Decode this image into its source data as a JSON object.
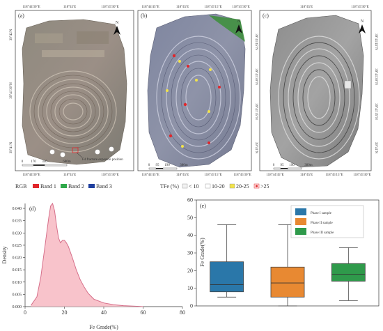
{
  "maps": {
    "a": {
      "label": "(a)",
      "top_ticks": [
        "118°44'30\"E",
        "118°45'E",
        "118°45'30\"E"
      ],
      "bottom_ticks": [
        "118°44'30\"E",
        "118°45'E",
        "118°45'30\"E"
      ],
      "left_ticks": [
        "39°42'N",
        "39°41'30\"N",
        "39°41'N"
      ],
      "scale_labels": [
        "0",
        "170",
        "340",
        "680m"
      ],
      "north": "N",
      "annotation": "F4 fracture exposure position"
    },
    "b": {
      "label": "(b)",
      "top_ticks": [
        "118°44'45\"E",
        "118°45'E",
        "118°45'15\"E",
        "118°45'30\"E"
      ],
      "bottom_ticks": [
        "118°44'45\"E",
        "118°45'E",
        "118°45'15\"E",
        "118°45'30\"E"
      ],
      "right_ticks": [
        "39°41'45\"N",
        "39°41'30\"N",
        "39°41'15\"N",
        "39°41'N"
      ],
      "scale_labels": [
        "0",
        "95",
        "190",
        "380m"
      ],
      "north": "N"
    },
    "c": {
      "label": "(c)",
      "top_ticks": [
        "118°45'E",
        "118°45'30\"E"
      ],
      "bottom_ticks": [
        "118°44'45\"E",
        "118°45'E",
        "118°45'15\"E",
        "118°45'30\"E"
      ],
      "right_ticks": [
        "39°41'45\"N",
        "39°41'30\"N",
        "39°41'15\"N",
        "39°41'N"
      ],
      "scale_labels": [
        "0",
        "95",
        "190",
        "380m"
      ],
      "north": "N"
    }
  },
  "legend_rgb": {
    "title": "RGB",
    "items": [
      {
        "label": "Band 1",
        "color": "#e0262b"
      },
      {
        "label": "Band 2",
        "color": "#2fa84a"
      },
      {
        "label": "Band 3",
        "color": "#1f3f9e"
      }
    ]
  },
  "legend_tfe": {
    "title": "TFe (%)",
    "items": [
      "< 10",
      "10-20",
      "20-25",
      ">25"
    ]
  },
  "chart_data": [
    {
      "type": "area",
      "label": "(d)",
      "xlabel": "Fe Grade(%)",
      "ylabel": "Density",
      "xlim": [
        0,
        80
      ],
      "ylim": [
        0,
        0.042
      ],
      "xticks": [
        0,
        20,
        40,
        60,
        80
      ],
      "yticks": [
        0,
        0.005,
        0.01,
        0.015,
        0.02,
        0.025,
        0.03,
        0.035,
        0.04
      ],
      "ytick_labels": [
        "0.000",
        "0.005",
        "0.010",
        "0.015",
        "0.020",
        "0.025",
        "0.030",
        "0.035",
        "0.040"
      ],
      "x": [
        3,
        6,
        8,
        10,
        12,
        13,
        14,
        15,
        16,
        17,
        18,
        19,
        20,
        21,
        22,
        24,
        26,
        28,
        30,
        32,
        35,
        40,
        45,
        50,
        55,
        58,
        60
      ],
      "y": [
        0.0005,
        0.004,
        0.012,
        0.024,
        0.036,
        0.041,
        0.042,
        0.039,
        0.033,
        0.028,
        0.026,
        0.027,
        0.027,
        0.026,
        0.0245,
        0.02,
        0.015,
        0.011,
        0.008,
        0.0055,
        0.003,
        0.0015,
        0.0008,
        0.0004,
        0.0002,
        0.0001,
        0.0
      ],
      "fill": "#f7b8c2",
      "stroke": "#d66f8a"
    },
    {
      "type": "box",
      "label": "(e)",
      "ylabel": "Fe Grade(%)",
      "ylim": [
        0,
        60
      ],
      "yticks": [
        0,
        10,
        20,
        30,
        40,
        50,
        60
      ],
      "series": [
        {
          "name": "Phase I sample",
          "color": "#2a77a9",
          "min": 5,
          "q1": 8,
          "median": 12,
          "q3": 25,
          "max": 46
        },
        {
          "name": "Phase II sample",
          "color": "#e88932",
          "min": 0,
          "q1": 5,
          "median": 13,
          "q3": 22,
          "max": 46
        },
        {
          "name": "Phase III sample",
          "color": "#2f9a4b",
          "min": 3,
          "q1": 14,
          "median": 18,
          "q3": 24,
          "max": 33
        }
      ]
    }
  ]
}
